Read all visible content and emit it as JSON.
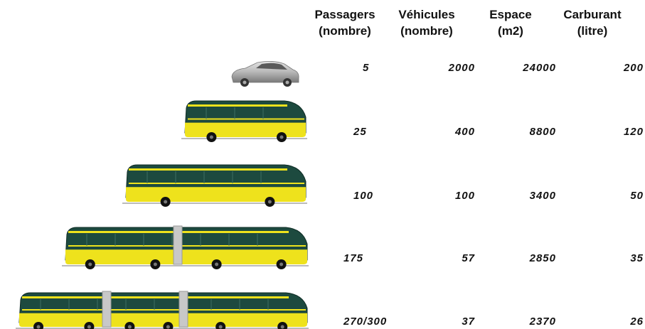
{
  "columns": [
    {
      "line1": "Passagers",
      "line2": "(nombre)"
    },
    {
      "line1": "Véhicules",
      "line2": "(nombre)"
    },
    {
      "line1": "Espace",
      "line2": "(m2)"
    },
    {
      "line1": "Carburant",
      "line2": "(litre)"
    }
  ],
  "rows": [
    [
      5,
      2000,
      24000,
      200
    ],
    [
      25,
      400,
      8800,
      120
    ],
    [
      100,
      100,
      3400,
      50
    ],
    [
      175,
      57,
      2850,
      35
    ],
    [
      "270/300",
      37,
      2370,
      26
    ]
  ]
}
